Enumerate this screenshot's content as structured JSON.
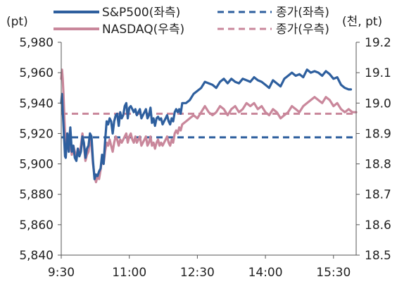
{
  "chart_data": {
    "type": "line",
    "left_unit": "(pt)",
    "right_unit": "(천, pt)",
    "x_ticks": [
      "9:30",
      "11:00",
      "12:30",
      "14:00",
      "15:30"
    ],
    "x_tick_minutes": [
      570,
      660,
      750,
      840,
      930
    ],
    "x_range_minutes": [
      570,
      960
    ],
    "y_left": {
      "ticks": [
        "5,840",
        "5,860",
        "5,880",
        "5,900",
        "5,920",
        "5,940",
        "5,960",
        "5,980"
      ],
      "range": [
        5840,
        5980
      ]
    },
    "y_right": {
      "ticks": [
        "18.5",
        "18.6",
        "18.7",
        "18.8",
        "18.9",
        "19.0",
        "19.1",
        "19.2"
      ],
      "range": [
        18.5,
        19.2
      ]
    },
    "series": [
      {
        "name": "S&P500(좌측)",
        "axis": "left",
        "color": "#2e5f9e",
        "style": "solid",
        "points": [
          [
            570,
            5940
          ],
          [
            571,
            5946
          ],
          [
            572,
            5935
          ],
          [
            573,
            5925
          ],
          [
            574,
            5915
          ],
          [
            575,
            5905
          ],
          [
            576,
            5904
          ],
          [
            577,
            5912
          ],
          [
            578,
            5920
          ],
          [
            579,
            5914
          ],
          [
            580,
            5908
          ],
          [
            581,
            5918
          ],
          [
            582,
            5924
          ],
          [
            583,
            5916
          ],
          [
            584,
            5908
          ],
          [
            586,
            5912
          ],
          [
            588,
            5904
          ],
          [
            590,
            5902
          ],
          [
            592,
            5910
          ],
          [
            594,
            5905
          ],
          [
            596,
            5908
          ],
          [
            598,
            5918
          ],
          [
            600,
            5914
          ],
          [
            602,
            5904
          ],
          [
            604,
            5910
          ],
          [
            606,
            5912
          ],
          [
            608,
            5920
          ],
          [
            610,
            5918
          ],
          [
            612,
            5902
          ],
          [
            614,
            5890
          ],
          [
            616,
            5893
          ],
          [
            618,
            5892
          ],
          [
            620,
            5895
          ],
          [
            622,
            5897
          ],
          [
            624,
            5906
          ],
          [
            626,
            5900
          ],
          [
            628,
            5915
          ],
          [
            630,
            5928
          ],
          [
            632,
            5926
          ],
          [
            634,
            5930
          ],
          [
            636,
            5928
          ],
          [
            638,
            5920
          ],
          [
            640,
            5928
          ],
          [
            642,
            5932
          ],
          [
            644,
            5933
          ],
          [
            646,
            5925
          ],
          [
            648,
            5934
          ],
          [
            650,
            5930
          ],
          [
            652,
            5932
          ],
          [
            654,
            5938
          ],
          [
            656,
            5940
          ],
          [
            658,
            5930
          ],
          [
            660,
            5937
          ],
          [
            662,
            5938
          ],
          [
            664,
            5936
          ],
          [
            666,
            5934
          ],
          [
            668,
            5936
          ],
          [
            670,
            5932
          ],
          [
            672,
            5934
          ],
          [
            674,
            5936
          ],
          [
            676,
            5930
          ],
          [
            678,
            5932
          ],
          [
            680,
            5934
          ],
          [
            682,
            5936
          ],
          [
            684,
            5930
          ],
          [
            686,
            5932
          ],
          [
            688,
            5937
          ],
          [
            690,
            5927
          ],
          [
            692,
            5930
          ],
          [
            694,
            5925
          ],
          [
            696,
            5930
          ],
          [
            698,
            5931
          ],
          [
            700,
            5929
          ],
          [
            702,
            5930
          ],
          [
            704,
            5926
          ],
          [
            706,
            5928
          ],
          [
            708,
            5930
          ],
          [
            710,
            5932
          ],
          [
            712,
            5928
          ],
          [
            714,
            5926
          ],
          [
            716,
            5930
          ],
          [
            718,
            5928
          ],
          [
            720,
            5934
          ],
          [
            722,
            5936
          ],
          [
            724,
            5934
          ],
          [
            726,
            5936
          ],
          [
            728,
            5933
          ],
          [
            730,
            5940
          ],
          [
            735,
            5940
          ],
          [
            740,
            5942
          ],
          [
            745,
            5946
          ],
          [
            750,
            5948
          ],
          [
            755,
            5950
          ],
          [
            760,
            5954
          ],
          [
            765,
            5953
          ],
          [
            770,
            5952
          ],
          [
            775,
            5950
          ],
          [
            780,
            5954
          ],
          [
            785,
            5956
          ],
          [
            790,
            5953
          ],
          [
            795,
            5956
          ],
          [
            800,
            5954
          ],
          [
            805,
            5953
          ],
          [
            810,
            5956
          ],
          [
            815,
            5955
          ],
          [
            820,
            5954
          ],
          [
            825,
            5957
          ],
          [
            830,
            5955
          ],
          [
            835,
            5954
          ],
          [
            840,
            5952
          ],
          [
            845,
            5950
          ],
          [
            850,
            5955
          ],
          [
            855,
            5953
          ],
          [
            860,
            5951
          ],
          [
            865,
            5956
          ],
          [
            870,
            5958
          ],
          [
            875,
            5960
          ],
          [
            880,
            5958
          ],
          [
            885,
            5959
          ],
          [
            890,
            5957
          ],
          [
            895,
            5962
          ],
          [
            900,
            5960
          ],
          [
            905,
            5961
          ],
          [
            910,
            5960
          ],
          [
            915,
            5958
          ],
          [
            920,
            5961
          ],
          [
            925,
            5959
          ],
          [
            930,
            5956
          ],
          [
            935,
            5957
          ],
          [
            940,
            5952
          ],
          [
            945,
            5950
          ],
          [
            950,
            5949
          ],
          [
            953,
            5949
          ]
        ]
      },
      {
        "name": "NASDAQ(우측)",
        "axis": "right",
        "color": "#c9879b",
        "style": "solid",
        "points": [
          [
            570,
            19.08
          ],
          [
            571,
            19.11
          ],
          [
            572,
            19.08
          ],
          [
            573,
            19.03
          ],
          [
            574,
            18.96
          ],
          [
            575,
            18.9
          ],
          [
            576,
            18.86
          ],
          [
            577,
            18.88
          ],
          [
            578,
            18.9
          ],
          [
            579,
            18.87
          ],
          [
            580,
            18.84
          ],
          [
            581,
            18.86
          ],
          [
            582,
            18.88
          ],
          [
            583,
            18.85
          ],
          [
            584,
            18.83
          ],
          [
            586,
            18.86
          ],
          [
            588,
            18.84
          ],
          [
            590,
            18.82
          ],
          [
            592,
            18.85
          ],
          [
            594,
            18.83
          ],
          [
            596,
            18.86
          ],
          [
            598,
            18.9
          ],
          [
            600,
            18.86
          ],
          [
            602,
            18.81
          ],
          [
            604,
            18.83
          ],
          [
            606,
            18.84
          ],
          [
            608,
            18.88
          ],
          [
            610,
            18.86
          ],
          [
            612,
            18.8
          ],
          [
            614,
            18.76
          ],
          [
            616,
            18.74
          ],
          [
            618,
            18.76
          ],
          [
            620,
            18.75
          ],
          [
            622,
            18.78
          ],
          [
            624,
            18.82
          ],
          [
            626,
            18.8
          ],
          [
            628,
            18.84
          ],
          [
            630,
            18.87
          ],
          [
            632,
            18.86
          ],
          [
            634,
            18.88
          ],
          [
            636,
            18.86
          ],
          [
            638,
            18.84
          ],
          [
            640,
            18.87
          ],
          [
            642,
            18.89
          ],
          [
            644,
            18.88
          ],
          [
            646,
            18.86
          ],
          [
            648,
            18.88
          ],
          [
            650,
            18.87
          ],
          [
            652,
            18.88
          ],
          [
            654,
            18.89
          ],
          [
            656,
            18.9
          ],
          [
            658,
            18.87
          ],
          [
            660,
            18.89
          ],
          [
            662,
            18.9
          ],
          [
            664,
            18.88
          ],
          [
            666,
            18.87
          ],
          [
            668,
            18.89
          ],
          [
            670,
            18.87
          ],
          [
            672,
            18.88
          ],
          [
            674,
            18.89
          ],
          [
            676,
            18.86
          ],
          [
            678,
            18.87
          ],
          [
            680,
            18.88
          ],
          [
            682,
            18.89
          ],
          [
            684,
            18.86
          ],
          [
            686,
            18.87
          ],
          [
            688,
            18.89
          ],
          [
            690,
            18.86
          ],
          [
            692,
            18.87
          ],
          [
            694,
            18.85
          ],
          [
            696,
            18.87
          ],
          [
            698,
            18.88
          ],
          [
            700,
            18.86
          ],
          [
            702,
            18.87
          ],
          [
            704,
            18.86
          ],
          [
            706,
            18.87
          ],
          [
            708,
            18.88
          ],
          [
            710,
            18.89
          ],
          [
            712,
            18.87
          ],
          [
            714,
            18.86
          ],
          [
            716,
            18.88
          ],
          [
            718,
            18.87
          ],
          [
            720,
            18.9
          ],
          [
            722,
            18.91
          ],
          [
            724,
            18.9
          ],
          [
            726,
            18.92
          ],
          [
            728,
            18.91
          ],
          [
            730,
            18.93
          ],
          [
            735,
            18.94
          ],
          [
            740,
            18.95
          ],
          [
            745,
            18.96
          ],
          [
            750,
            18.95
          ],
          [
            755,
            18.97
          ],
          [
            760,
            18.99
          ],
          [
            765,
            18.97
          ],
          [
            770,
            18.96
          ],
          [
            775,
            18.97
          ],
          [
            780,
            18.99
          ],
          [
            785,
            18.98
          ],
          [
            790,
            18.96
          ],
          [
            795,
            18.98
          ],
          [
            800,
            18.99
          ],
          [
            805,
            18.97
          ],
          [
            810,
            18.98
          ],
          [
            815,
            19.0
          ],
          [
            820,
            18.99
          ],
          [
            825,
            19.0
          ],
          [
            830,
            18.98
          ],
          [
            835,
            18.99
          ],
          [
            840,
            18.97
          ],
          [
            845,
            18.96
          ],
          [
            850,
            18.98
          ],
          [
            855,
            18.97
          ],
          [
            860,
            18.95
          ],
          [
            865,
            18.96
          ],
          [
            870,
            18.97
          ],
          [
            875,
            18.99
          ],
          [
            880,
            18.98
          ],
          [
            885,
            18.97
          ],
          [
            890,
            18.99
          ],
          [
            895,
            19.0
          ],
          [
            900,
            19.01
          ],
          [
            905,
            19.02
          ],
          [
            910,
            19.01
          ],
          [
            915,
            19.0
          ],
          [
            920,
            19.02
          ],
          [
            925,
            19.01
          ],
          [
            930,
            18.99
          ],
          [
            935,
            19.0
          ],
          [
            940,
            18.98
          ],
          [
            945,
            18.97
          ],
          [
            950,
            18.98
          ],
          [
            955,
            18.97
          ],
          [
            960,
            18.97
          ]
        ]
      },
      {
        "name": "종가(좌측)",
        "axis": "left",
        "color": "#2e5f9e",
        "style": "dashed",
        "value": 5917.5
      },
      {
        "name": "종가(우측)",
        "axis": "right",
        "color": "#c9879b",
        "style": "dashed",
        "value": 18.965
      }
    ]
  }
}
